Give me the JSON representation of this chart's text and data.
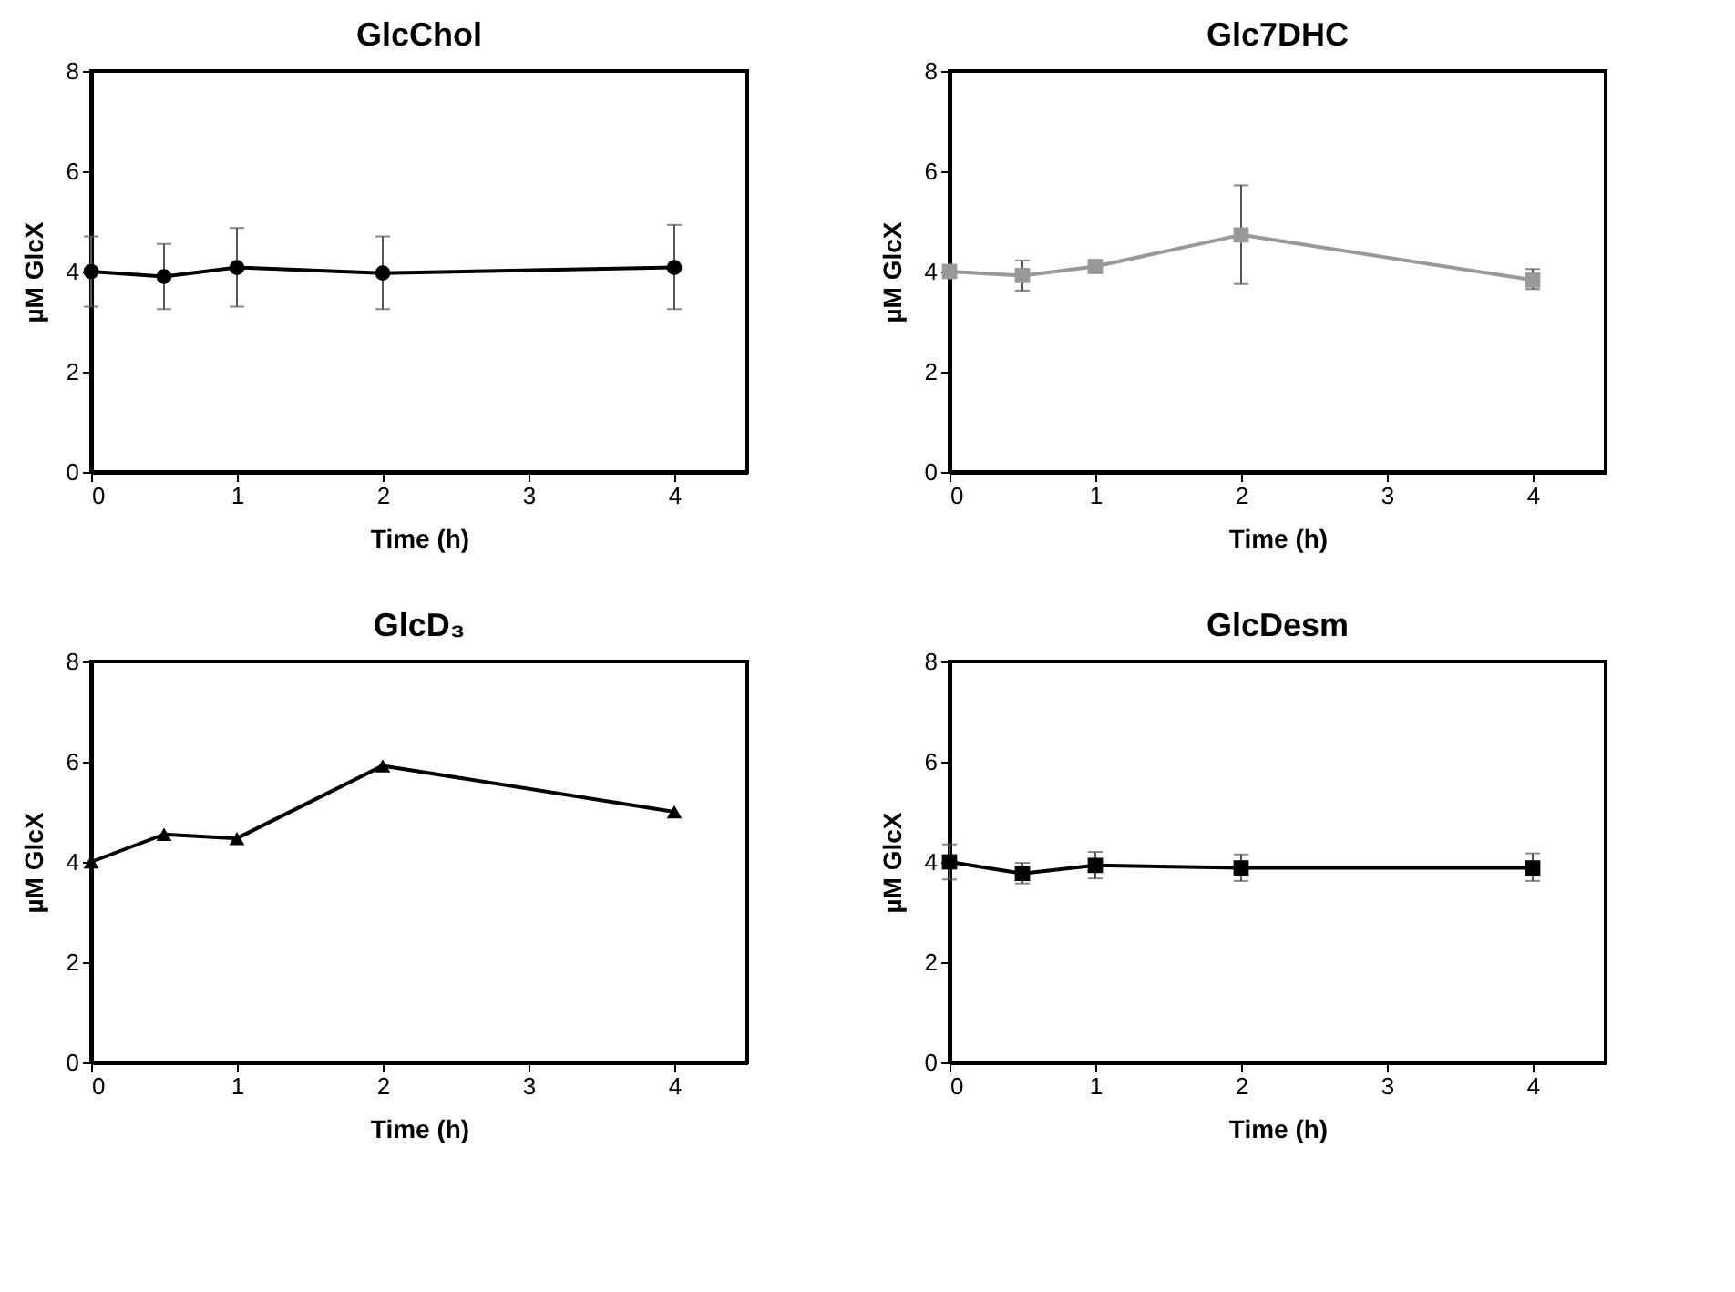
{
  "chart_data": [
    {
      "type": "line",
      "title": "GlcChol",
      "xlabel": "Time (h)",
      "ylabel": "µM GlcX",
      "xlim": [
        0,
        4.5
      ],
      "xticks": [
        0,
        1,
        2,
        3,
        4
      ],
      "ylim": [
        0,
        8
      ],
      "yticks": [
        0,
        2,
        4,
        6,
        8
      ],
      "x": [
        0,
        0.5,
        1,
        2,
        4
      ],
      "marker": "circle",
      "grid": false,
      "series": [
        {
          "color": "#000000",
          "values": [
            4.0,
            3.9,
            4.08,
            3.97,
            4.08
          ],
          "errors": [
            [
              3.3,
              4.7
            ],
            [
              3.25,
              4.55
            ],
            [
              3.3,
              4.87
            ],
            [
              3.25,
              4.7
            ],
            [
              3.25,
              4.93
            ]
          ]
        }
      ]
    },
    {
      "type": "line",
      "title": "Glc7DHC",
      "xlabel": "Time (h)",
      "ylabel": "µM GlcX",
      "xlim": [
        0,
        4.5
      ],
      "xticks": [
        0,
        1,
        2,
        3,
        4
      ],
      "ylim": [
        0,
        8
      ],
      "yticks": [
        0,
        2,
        4,
        6,
        8
      ],
      "x": [
        0,
        0.5,
        1,
        2,
        4
      ],
      "marker": "square",
      "grid": false,
      "series": [
        {
          "color": "#999999",
          "values": [
            4.0,
            3.92,
            4.1,
            4.73,
            3.83
          ],
          "errors": [
            null,
            [
              3.62,
              4.22
            ],
            null,
            [
              3.75,
              5.72
            ],
            [
              3.65,
              4.05
            ]
          ]
        }
      ]
    },
    {
      "type": "line",
      "title": "GlcD₃",
      "xlabel": "Time (h)",
      "ylabel": "µM GlcX",
      "xlim": [
        0,
        4.5
      ],
      "xticks": [
        0,
        1,
        2,
        3,
        4
      ],
      "ylim": [
        0,
        8
      ],
      "yticks": [
        0,
        2,
        4,
        6,
        8
      ],
      "x": [
        0,
        0.5,
        1,
        2,
        4
      ],
      "marker": "triangle",
      "grid": false,
      "series": [
        {
          "color": "#000000",
          "values": [
            4.0,
            4.55,
            4.47,
            5.92,
            5.0
          ]
        }
      ]
    },
    {
      "type": "line",
      "title": "GlcDesm",
      "xlabel": "Time (h)",
      "ylabel": "µM GlcX",
      "xlim": [
        0,
        4.5
      ],
      "xticks": [
        0,
        1,
        2,
        3,
        4
      ],
      "ylim": [
        0,
        8
      ],
      "yticks": [
        0,
        2,
        4,
        6,
        8
      ],
      "x": [
        0,
        0.5,
        1,
        2,
        4
      ],
      "marker": "square",
      "grid": false,
      "series": [
        {
          "color": "#000000",
          "values": [
            4.0,
            3.77,
            3.93,
            3.88,
            3.88
          ],
          "errors": [
            [
              3.65,
              4.35
            ],
            [
              3.57,
              3.98
            ],
            [
              3.67,
              4.2
            ],
            [
              3.62,
              4.15
            ],
            [
              3.62,
              4.17
            ]
          ]
        }
      ]
    }
  ]
}
